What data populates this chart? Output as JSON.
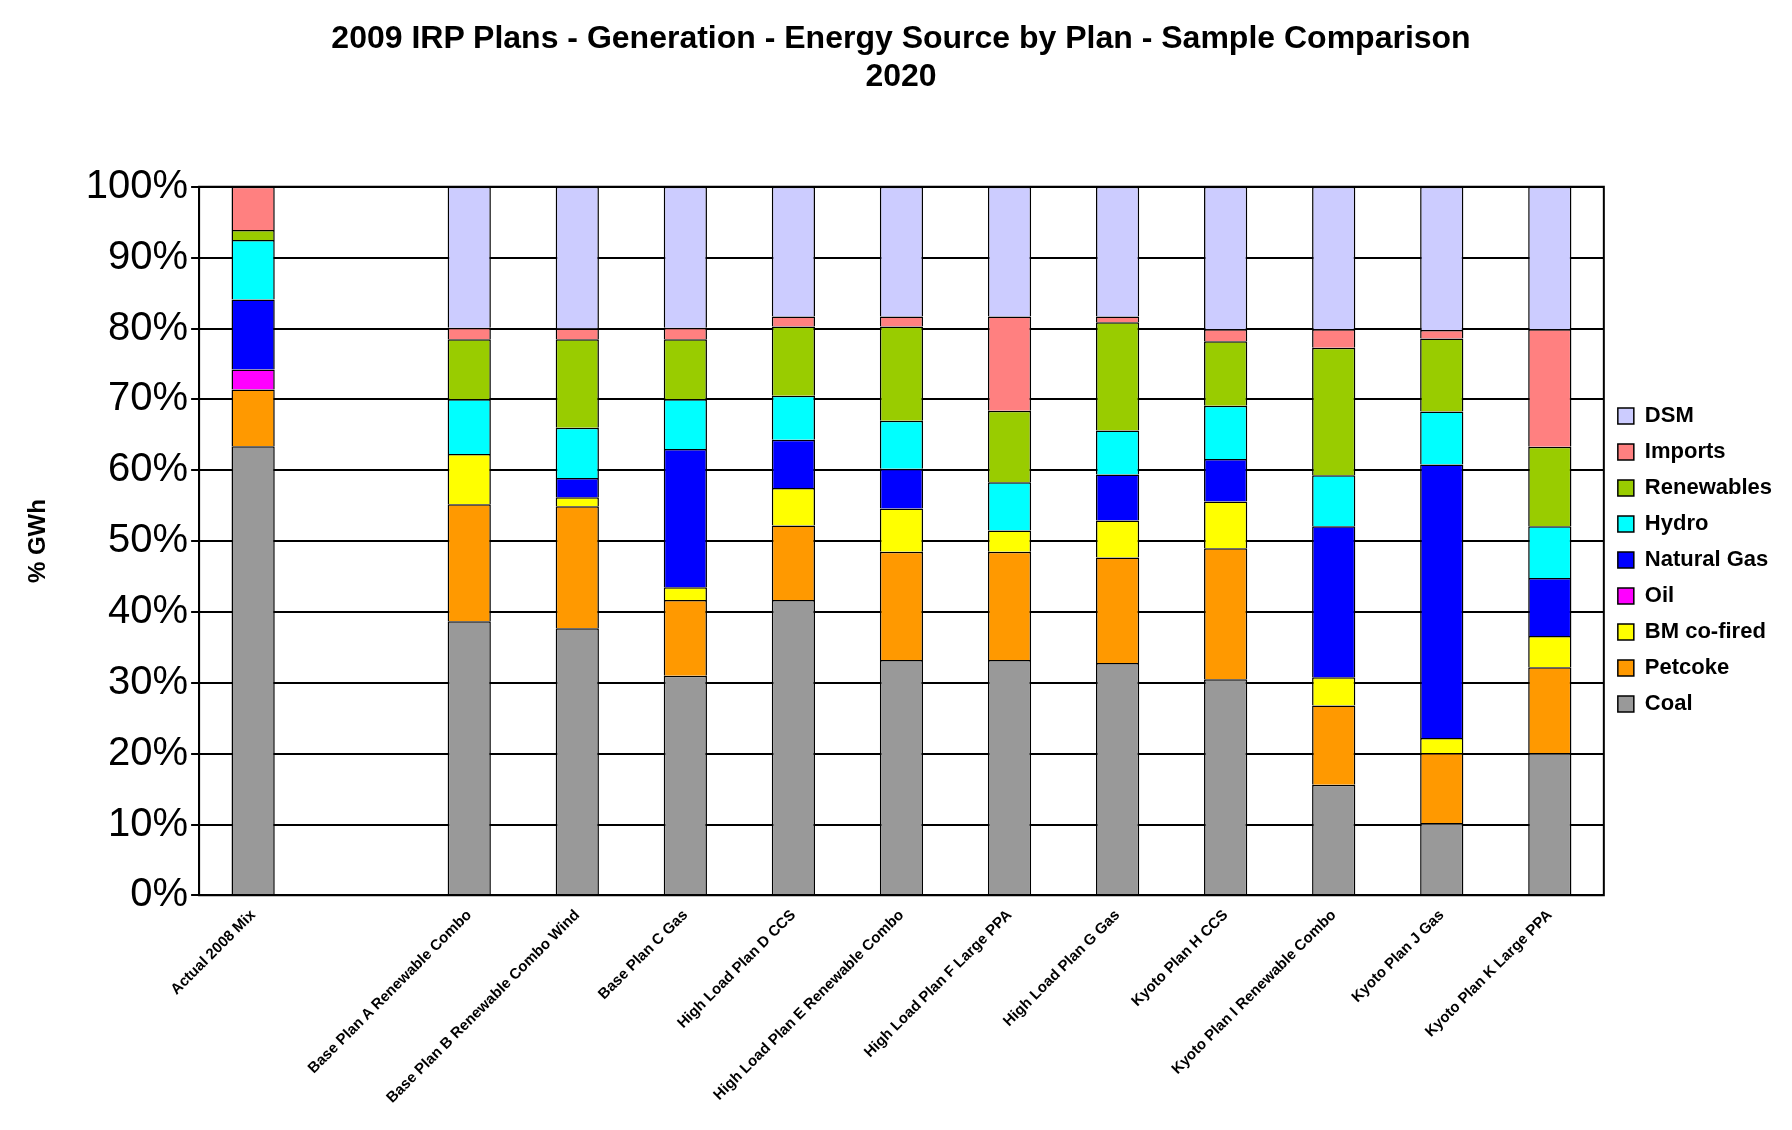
{
  "chart_data": {
    "type": "bar",
    "stacked": true,
    "title": "2009 IRP Plans - Generation - Energy Source by Plan - Sample Comparison",
    "subtitle": "2020",
    "ylabel": "% GWh",
    "categories": [
      "Actual 2008 Mix",
      null,
      "Base Plan A Renewable Combo",
      "Base Plan B Renewable Combo Wind",
      "Base Plan C Gas",
      "High Load Plan D CCS",
      "High Load Plan E Renewable Combo",
      "High Load Plan F Large PPA",
      "High Load Plan G Gas",
      "Kyoto Plan H CCS",
      "Kyoto Plan I Renewable Combo",
      "Kyoto Plan J Gas",
      "Kyoto Plan K Large PPA"
    ],
    "series": [
      {
        "name": "Coal",
        "color": "#999999",
        "values": [
          63.4,
          null,
          38.7,
          37.7,
          31,
          41.7,
          33.2,
          33.2,
          32.8,
          30.5,
          15.6,
          10.2,
          20.1
        ]
      },
      {
        "name": "Petcoke",
        "color": "#ff9900",
        "values": [
          8,
          null,
          16.5,
          17.2,
          10.7,
          10.5,
          15.3,
          15.3,
          14.9,
          18.5,
          11.2,
          9.9,
          12.1
        ]
      },
      {
        "name": "BM co-fired",
        "color": "#ffff00",
        "values": [
          0,
          null,
          7.1,
          1.3,
          1.8,
          5.3,
          6.1,
          3,
          5.2,
          6.6,
          4,
          2.1,
          4.4
        ]
      },
      {
        "name": "Oil",
        "color": "#ff00ff",
        "values": [
          2.8,
          null,
          0,
          0,
          0,
          0,
          0,
          0,
          0,
          0,
          0,
          0,
          0
        ]
      },
      {
        "name": "Natural Gas",
        "color": "#0000ff",
        "values": [
          9.9,
          null,
          0,
          2.7,
          19.5,
          6.8,
          5.6,
          0,
          6.5,
          6,
          21.3,
          38.6,
          8.2
        ]
      },
      {
        "name": "Hydro",
        "color": "#00ffff",
        "values": [
          8.4,
          null,
          7.7,
          7.1,
          7,
          6.2,
          6.8,
          6.8,
          6.2,
          7.5,
          7.2,
          7.5,
          7.3
        ]
      },
      {
        "name": "Renewables",
        "color": "#99cc00",
        "values": [
          1.4,
          null,
          8.5,
          12.5,
          8.5,
          9.8,
          13.3,
          10.1,
          15.3,
          9.1,
          18,
          10.3,
          11.2
        ]
      },
      {
        "name": "Imports",
        "color": "#ff8080",
        "values": [
          6.1,
          null,
          1.6,
          1.5,
          1.6,
          1.4,
          1.4,
          13.3,
          0.8,
          1.7,
          2.6,
          1.2,
          16.6
        ]
      },
      {
        "name": "DSM",
        "color": "#ccccff",
        "values": [
          0,
          null,
          19.9,
          20,
          19.9,
          18.3,
          18.3,
          18.3,
          18.3,
          20.1,
          20.1,
          20.2,
          20.1
        ]
      }
    ],
    "ylim": [
      0,
      100
    ],
    "yticks": [
      {
        "value": 0,
        "label": "0%"
      },
      {
        "value": 10,
        "label": "10%"
      },
      {
        "value": 20,
        "label": "20%"
      },
      {
        "value": 30,
        "label": "30%"
      },
      {
        "value": 40,
        "label": "40%"
      },
      {
        "value": 50,
        "label": "50%"
      },
      {
        "value": 60,
        "label": "60%"
      },
      {
        "value": 70,
        "label": "70%"
      },
      {
        "value": 80,
        "label": "80%"
      },
      {
        "value": 90,
        "label": "90%"
      },
      {
        "value": 100,
        "label": "100%"
      }
    ],
    "grid": "y",
    "legend": "right"
  }
}
